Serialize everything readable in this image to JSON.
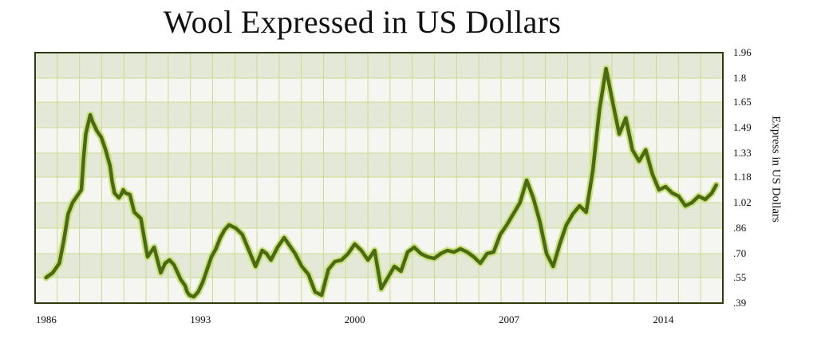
{
  "chart_data": {
    "type": "line",
    "title": "Wool Expressed in US Dollars",
    "xlabel": "",
    "ylabel": "Express in US Dollars",
    "x_tick_labels": [
      "1986",
      "1993",
      "2000",
      "2007",
      "2014"
    ],
    "x_tick_values": [
      1986,
      1993,
      2000,
      2007,
      2014
    ],
    "xlim": [
      1985.5,
      2016.7
    ],
    "y_tick_labels": [
      "1.96",
      "1.8",
      "1.65",
      "1.49",
      "1.33",
      "1.18",
      "1.02",
      ".86",
      ".70",
      ".55",
      ".39"
    ],
    "y_tick_values": [
      1.96,
      1.8,
      1.65,
      1.49,
      1.33,
      1.18,
      1.02,
      0.86,
      0.7,
      0.55,
      0.39
    ],
    "ylim": [
      0.39,
      1.96
    ],
    "y_axis_side": "right",
    "grid": true,
    "legend": false,
    "colors": {
      "line": "#4a6b12",
      "line_glow": "#c6df6e",
      "band": "#e4e8d6",
      "plot_bg": "#f5f5f2",
      "grid": "#c9dc8c",
      "frame": "#2d3a0c"
    },
    "series": [
      {
        "x": [
          1986.0,
          1986.3,
          1986.6,
          1986.8,
          1987.0,
          1987.2,
          1987.4,
          1987.6,
          1987.7,
          1987.8,
          1988.0,
          1988.1,
          1988.3,
          1988.5,
          1988.7,
          1988.9,
          1989.0,
          1989.1,
          1989.3,
          1989.4,
          1989.5,
          1989.6,
          1989.8,
          1990.0,
          1990.3,
          1990.6,
          1990.9,
          1991.2,
          1991.4,
          1991.6,
          1991.8,
          1992.0,
          1992.1,
          1992.3,
          1992.4,
          1992.5,
          1992.7,
          1992.9,
          1993.0,
          1993.1,
          1993.3,
          1993.5,
          1993.7,
          1993.9,
          1994.1,
          1994.3,
          1994.6,
          1994.9,
          1995.2,
          1995.5,
          1995.8,
          1996.0,
          1996.2,
          1996.5,
          1996.8,
          1997.0,
          1997.3,
          1997.6,
          1997.9,
          1998.2,
          1998.5,
          1998.8,
          1999.1,
          1999.4,
          1999.7,
          2000.0,
          2000.3,
          2000.6,
          2000.9,
          2001.2,
          2001.5,
          2001.8,
          2002.1,
          2002.4,
          2002.7,
          2003.0,
          2003.3,
          2003.6,
          2003.9,
          2004.2,
          2004.5,
          2004.8,
          2005.1,
          2005.4,
          2005.7,
          2006.0,
          2006.3,
          2006.6,
          2006.9,
          2007.2,
          2007.5,
          2007.8,
          2008.1,
          2008.4,
          2008.7,
          2009.0,
          2009.3,
          2009.6,
          2009.9,
          2010.2,
          2010.5,
          2010.8,
          2011.1,
          2011.4,
          2011.7,
          2012.0,
          2012.3,
          2012.6,
          2012.9,
          2013.2,
          2013.5,
          2013.8,
          2014.1,
          2014.4,
          2014.7,
          2015.0,
          2015.3,
          2015.6,
          2015.9,
          2016.2,
          2016.4
        ],
        "y": [
          0.55,
          0.58,
          0.64,
          0.78,
          0.95,
          1.02,
          1.06,
          1.1,
          1.3,
          1.45,
          1.57,
          1.53,
          1.47,
          1.43,
          1.35,
          1.25,
          1.15,
          1.08,
          1.05,
          1.07,
          1.1,
          1.08,
          1.07,
          0.96,
          0.92,
          0.68,
          0.74,
          0.58,
          0.64,
          0.66,
          0.63,
          0.57,
          0.54,
          0.5,
          0.46,
          0.44,
          0.43,
          0.46,
          0.49,
          0.52,
          0.6,
          0.68,
          0.73,
          0.8,
          0.85,
          0.88,
          0.86,
          0.82,
          0.72,
          0.62,
          0.72,
          0.7,
          0.66,
          0.74,
          0.8,
          0.76,
          0.7,
          0.62,
          0.57,
          0.46,
          0.44,
          0.6,
          0.65,
          0.66,
          0.7,
          0.76,
          0.72,
          0.66,
          0.72,
          0.48,
          0.55,
          0.62,
          0.59,
          0.71,
          0.74,
          0.7,
          0.68,
          0.67,
          0.7,
          0.72,
          0.71,
          0.73,
          0.71,
          0.68,
          0.64,
          0.7,
          0.71,
          0.82,
          0.88,
          0.95,
          1.02,
          1.16,
          1.05,
          0.9,
          0.7,
          0.62,
          0.76,
          0.88,
          0.95,
          1.0,
          0.96,
          1.22,
          1.6,
          1.86,
          1.65,
          1.45,
          1.55,
          1.35,
          1.28,
          1.35,
          1.2,
          1.1,
          1.12,
          1.08,
          1.06,
          1.0,
          1.02,
          1.06,
          1.04,
          1.08,
          1.13
        ]
      }
    ]
  }
}
